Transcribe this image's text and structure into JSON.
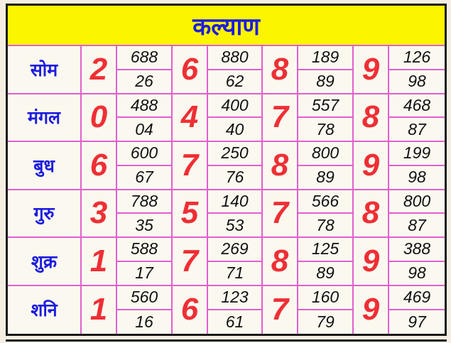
{
  "title": "कल्याण",
  "colors": {
    "header_bg": "#fbf500",
    "title": "#1c1ce0",
    "digit": "#ef2f35",
    "grid_line": "#e25fd0"
  },
  "rows": [
    {
      "day": "सोम",
      "weeks": [
        {
          "digit": "2",
          "pana": "688",
          "jodi": "26"
        },
        {
          "digit": "6",
          "pana": "880",
          "jodi": "62"
        },
        {
          "digit": "8",
          "pana": "189",
          "jodi": "89"
        },
        {
          "digit": "9",
          "pana": "126",
          "jodi": "98"
        }
      ]
    },
    {
      "day": "मंगल",
      "weeks": [
        {
          "digit": "0",
          "pana": "488",
          "jodi": "04"
        },
        {
          "digit": "4",
          "pana": "400",
          "jodi": "40"
        },
        {
          "digit": "7",
          "pana": "557",
          "jodi": "78"
        },
        {
          "digit": "8",
          "pana": "468",
          "jodi": "87"
        }
      ]
    },
    {
      "day": "बुध",
      "weeks": [
        {
          "digit": "6",
          "pana": "600",
          "jodi": "67"
        },
        {
          "digit": "7",
          "pana": "250",
          "jodi": "76"
        },
        {
          "digit": "8",
          "pana": "800",
          "jodi": "89"
        },
        {
          "digit": "9",
          "pana": "199",
          "jodi": "98"
        }
      ]
    },
    {
      "day": "गुरु",
      "weeks": [
        {
          "digit": "3",
          "pana": "788",
          "jodi": "35"
        },
        {
          "digit": "5",
          "pana": "140",
          "jodi": "53"
        },
        {
          "digit": "7",
          "pana": "566",
          "jodi": "78"
        },
        {
          "digit": "8",
          "pana": "800",
          "jodi": "87"
        }
      ]
    },
    {
      "day": "शुक्र",
      "weeks": [
        {
          "digit": "1",
          "pana": "588",
          "jodi": "17"
        },
        {
          "digit": "7",
          "pana": "269",
          "jodi": "71"
        },
        {
          "digit": "8",
          "pana": "125",
          "jodi": "89"
        },
        {
          "digit": "9",
          "pana": "388",
          "jodi": "98"
        }
      ]
    },
    {
      "day": "शनि",
      "weeks": [
        {
          "digit": "1",
          "pana": "560",
          "jodi": "16"
        },
        {
          "digit": "6",
          "pana": "123",
          "jodi": "61"
        },
        {
          "digit": "7",
          "pana": "160",
          "jodi": "79"
        },
        {
          "digit": "9",
          "pana": "469",
          "jodi": "97"
        }
      ]
    }
  ]
}
